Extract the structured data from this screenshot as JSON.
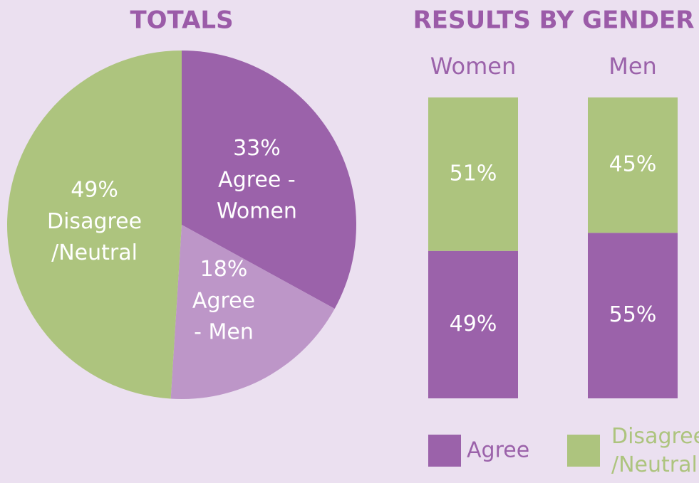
{
  "chart_data": [
    {
      "type": "pie",
      "title": "TOTALS",
      "categories": [
        "Agree -\nWomen",
        "Agree\n- Men",
        "Disagree\n/Neutral"
      ],
      "values": [
        33,
        18,
        49
      ],
      "value_labels": [
        "33%",
        "18%",
        "49%"
      ],
      "colors": [
        "#9b62aa",
        "#bd96c8",
        "#adc47e"
      ]
    },
    {
      "type": "bar",
      "stacked": true,
      "title": "RESULTS BY GENDER",
      "categories": [
        "Women",
        "Men"
      ],
      "ylim": [
        0,
        100
      ],
      "series": [
        {
          "name": "Agree",
          "color": "#9b62aa",
          "values": [
            49,
            55
          ],
          "value_labels": [
            "49%",
            "55%"
          ]
        },
        {
          "name": "Disagree\n/Neutral",
          "color": "#adc47e",
          "values": [
            51,
            45
          ],
          "value_labels": [
            "51%",
            "45%"
          ]
        }
      ]
    }
  ]
}
